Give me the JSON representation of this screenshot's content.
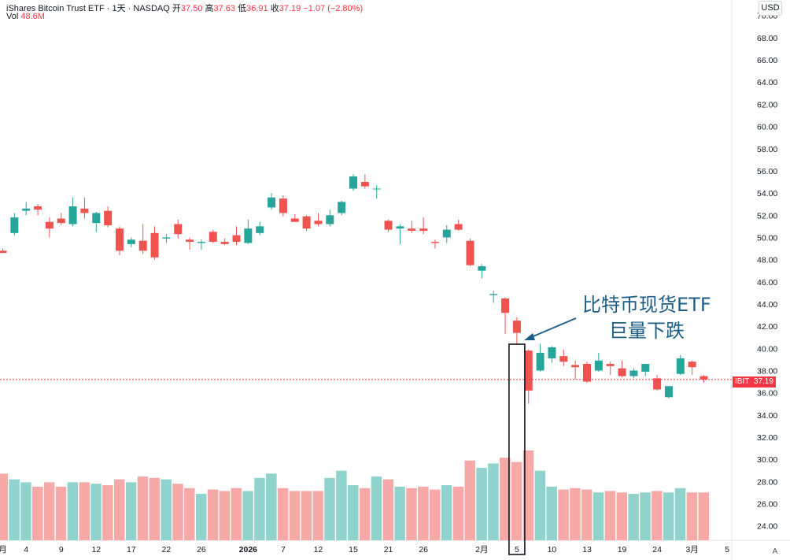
{
  "header": {
    "symbol": "iShares Bitcoin Trust ETF · 1天 · NASDAQ",
    "open_label": "开",
    "open_value": "37.50",
    "high_label": "高",
    "high_value": "37.63",
    "low_label": "低",
    "low_value": "36.91",
    "close_label": "收",
    "close_value": "37.19",
    "change": "−1.07 (−2.80%)",
    "vol_label": "Vol",
    "vol_value": "48.6M"
  },
  "currency_button": "USD",
  "timezone_button": "A",
  "annotation": {
    "line1": "比特币现货ETF",
    "line2": "巨量下跌"
  },
  "price_tag": {
    "ticker": "IBIT",
    "value": "37.19"
  },
  "colors": {
    "up": "#26a69a",
    "down": "#ef5350",
    "up_vol": "#8fd3cc",
    "down_vol": "#f7a9a7",
    "annotation": "#1c5f86",
    "last_price_line": "#f23645"
  },
  "chart_data": {
    "type": "candlestick",
    "y_ticks": [
      "24.00",
      "26.00",
      "28.00",
      "30.00",
      "32.00",
      "34.00",
      "36.00",
      "38.00",
      "40.00",
      "42.00",
      "44.00",
      "46.00",
      "48.00",
      "50.00",
      "52.00",
      "54.00",
      "56.00",
      "58.00",
      "60.00",
      "62.00",
      "64.00",
      "66.00",
      "68.00",
      "70.00"
    ],
    "ylim": [
      22.7,
      71.4
    ],
    "x_ticks": [
      {
        "i": 0,
        "label": "月"
      },
      {
        "i": 2,
        "label": "4"
      },
      {
        "i": 5,
        "label": "9"
      },
      {
        "i": 8,
        "label": "12"
      },
      {
        "i": 11,
        "label": "17"
      },
      {
        "i": 14,
        "label": "22"
      },
      {
        "i": 17,
        "label": "26"
      },
      {
        "i": 21,
        "label": "2026"
      },
      {
        "i": 24,
        "label": "7"
      },
      {
        "i": 27,
        "label": "12"
      },
      {
        "i": 30,
        "label": "15"
      },
      {
        "i": 33,
        "label": "21"
      },
      {
        "i": 36,
        "label": "26"
      },
      {
        "i": 41,
        "label": "2月"
      },
      {
        "i": 44,
        "label": "5"
      },
      {
        "i": 47,
        "label": "10"
      },
      {
        "i": 50,
        "label": "13"
      },
      {
        "i": 53,
        "label": "19"
      },
      {
        "i": 56,
        "label": "24"
      },
      {
        "i": 59,
        "label": "3月"
      },
      {
        "i": 62,
        "label": "5"
      }
    ],
    "candles": [
      {
        "o": 48.8,
        "h": 49.0,
        "l": 48.6,
        "c": 48.6
      },
      {
        "o": 50.4,
        "h": 52.2,
        "l": 50.2,
        "c": 51.8
      },
      {
        "o": 52.4,
        "h": 53.2,
        "l": 52.0,
        "c": 52.6
      },
      {
        "o": 52.8,
        "h": 53.0,
        "l": 52.0,
        "c": 52.5
      },
      {
        "o": 51.4,
        "h": 51.8,
        "l": 50.0,
        "c": 50.8
      },
      {
        "o": 51.7,
        "h": 52.2,
        "l": 51.1,
        "c": 51.3
      },
      {
        "o": 51.2,
        "h": 53.6,
        "l": 51.0,
        "c": 52.8
      },
      {
        "o": 52.6,
        "h": 53.6,
        "l": 51.7,
        "c": 52.2
      },
      {
        "o": 51.3,
        "h": 52.3,
        "l": 50.5,
        "c": 52.2
      },
      {
        "o": 52.4,
        "h": 52.8,
        "l": 50.9,
        "c": 51.1
      },
      {
        "o": 50.8,
        "h": 51.0,
        "l": 48.4,
        "c": 48.8
      },
      {
        "o": 49.4,
        "h": 50.0,
        "l": 49.1,
        "c": 49.8
      },
      {
        "o": 49.7,
        "h": 51.2,
        "l": 48.5,
        "c": 48.8
      },
      {
        "o": 50.4,
        "h": 51.0,
        "l": 48.0,
        "c": 48.2
      },
      {
        "o": 49.9,
        "h": 50.3,
        "l": 49.5,
        "c": 50.0
      },
      {
        "o": 51.2,
        "h": 51.6,
        "l": 49.9,
        "c": 50.3
      },
      {
        "o": 49.8,
        "h": 50.0,
        "l": 48.9,
        "c": 49.6
      },
      {
        "o": 49.5,
        "h": 49.8,
        "l": 48.9,
        "c": 49.6
      },
      {
        "o": 50.5,
        "h": 50.7,
        "l": 49.5,
        "c": 49.6
      },
      {
        "o": 49.6,
        "h": 49.9,
        "l": 49.3,
        "c": 49.4
      },
      {
        "o": 50.2,
        "h": 51.0,
        "l": 49.3,
        "c": 49.6
      },
      {
        "o": 49.5,
        "h": 51.6,
        "l": 49.4,
        "c": 50.8
      },
      {
        "o": 50.4,
        "h": 51.4,
        "l": 50.2,
        "c": 51.0
      },
      {
        "o": 52.7,
        "h": 54.0,
        "l": 52.5,
        "c": 53.6
      },
      {
        "o": 53.5,
        "h": 53.8,
        "l": 51.9,
        "c": 52.2
      },
      {
        "o": 51.7,
        "h": 52.1,
        "l": 51.4,
        "c": 51.4
      },
      {
        "o": 51.9,
        "h": 52.0,
        "l": 50.6,
        "c": 50.8
      },
      {
        "o": 51.5,
        "h": 52.2,
        "l": 51.0,
        "c": 51.2
      },
      {
        "o": 51.2,
        "h": 52.5,
        "l": 51.0,
        "c": 52.0
      },
      {
        "o": 52.2,
        "h": 53.3,
        "l": 52.0,
        "c": 53.2
      },
      {
        "o": 54.4,
        "h": 55.7,
        "l": 54.2,
        "c": 55.5
      },
      {
        "o": 55.0,
        "h": 55.7,
        "l": 54.4,
        "c": 54.6
      },
      {
        "o": 54.4,
        "h": 54.7,
        "l": 53.5,
        "c": 54.4
      },
      {
        "o": 51.5,
        "h": 51.6,
        "l": 50.5,
        "c": 50.7
      },
      {
        "o": 50.8,
        "h": 51.2,
        "l": 49.4,
        "c": 51.0
      },
      {
        "o": 50.8,
        "h": 51.5,
        "l": 50.4,
        "c": 50.6
      },
      {
        "o": 50.8,
        "h": 51.8,
        "l": 50.3,
        "c": 50.6
      },
      {
        "o": 49.6,
        "h": 49.8,
        "l": 49.0,
        "c": 49.5
      },
      {
        "o": 50.0,
        "h": 51.1,
        "l": 49.5,
        "c": 50.7
      },
      {
        "o": 51.2,
        "h": 51.6,
        "l": 50.6,
        "c": 50.7
      },
      {
        "o": 49.7,
        "h": 49.9,
        "l": 47.4,
        "c": 47.5
      },
      {
        "o": 47.0,
        "h": 47.6,
        "l": 46.3,
        "c": 47.4
      },
      {
        "o": 44.8,
        "h": 45.2,
        "l": 44.1,
        "c": 44.9
      },
      {
        "o": 44.5,
        "h": 44.6,
        "l": 41.3,
        "c": 43.2
      },
      {
        "o": 42.5,
        "h": 42.8,
        "l": 40.3,
        "c": 41.4
      },
      {
        "o": 39.8,
        "h": 39.9,
        "l": 35.0,
        "c": 36.2
      },
      {
        "o": 38.0,
        "h": 40.4,
        "l": 37.9,
        "c": 39.6
      },
      {
        "o": 39.1,
        "h": 40.2,
        "l": 38.7,
        "c": 40.1
      },
      {
        "o": 39.3,
        "h": 39.9,
        "l": 38.4,
        "c": 38.8
      },
      {
        "o": 38.5,
        "h": 38.9,
        "l": 37.2,
        "c": 38.3
      },
      {
        "o": 38.6,
        "h": 38.8,
        "l": 36.9,
        "c": 37.0
      },
      {
        "o": 38.0,
        "h": 39.6,
        "l": 37.9,
        "c": 38.9
      },
      {
        "o": 38.6,
        "h": 38.8,
        "l": 37.6,
        "c": 38.4
      },
      {
        "o": 38.2,
        "h": 38.9,
        "l": 37.4,
        "c": 37.5
      },
      {
        "o": 37.5,
        "h": 38.2,
        "l": 37.3,
        "c": 38.0
      },
      {
        "o": 37.9,
        "h": 38.6,
        "l": 37.5,
        "c": 38.6
      },
      {
        "o": 37.3,
        "h": 37.6,
        "l": 36.2,
        "c": 36.3
      },
      {
        "o": 35.6,
        "h": 36.6,
        "l": 35.5,
        "c": 36.6
      },
      {
        "o": 37.7,
        "h": 39.4,
        "l": 37.6,
        "c": 39.1
      },
      {
        "o": 38.8,
        "h": 38.9,
        "l": 37.6,
        "c": 38.3
      },
      {
        "o": 37.5,
        "h": 37.6,
        "l": 36.9,
        "c": 37.2
      }
    ],
    "volume": {
      "ylim": [
        0,
        63
      ],
      "values": [
        46,
        42,
        40,
        37,
        40,
        37,
        40,
        40,
        39,
        38,
        42,
        40,
        44,
        43,
        42,
        39,
        36,
        32,
        35,
        34,
        36,
        34,
        43,
        46,
        36,
        34,
        34,
        34,
        43,
        48,
        38,
        36,
        44,
        42,
        37,
        36,
        37,
        35,
        38,
        37,
        55,
        50,
        53,
        57,
        54,
        62,
        48,
        37,
        35,
        36,
        35,
        33,
        34,
        33,
        32,
        33,
        34,
        33,
        36,
        33,
        33
      ]
    },
    "last_price": 37.19,
    "highlight_index": 44
  }
}
